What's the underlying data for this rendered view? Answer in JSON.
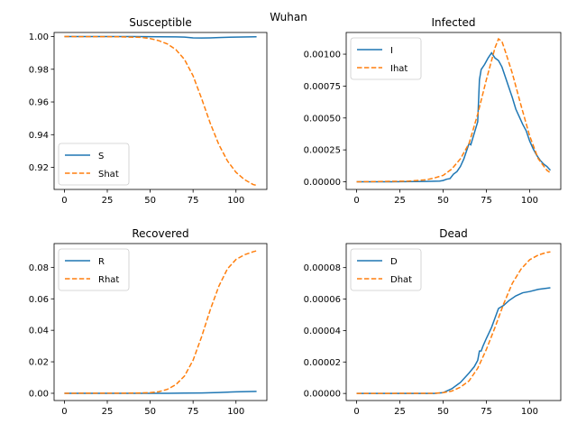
{
  "figure": {
    "suptitle": "Wuhan"
  },
  "chart_data": [
    {
      "type": "line",
      "title": "Susceptible",
      "xlim": [
        -6,
        118
      ],
      "ylim": [
        0.9065,
        1.0025
      ],
      "xticks": [
        0,
        25,
        50,
        75,
        100
      ],
      "xtick_labels": [
        "0",
        "25",
        "50",
        "75",
        "100"
      ],
      "yticks": [
        0.92,
        0.94,
        0.96,
        0.98,
        1.0
      ],
      "ytick_labels": [
        "0.92",
        "0.94",
        "0.96",
        "0.98",
        "1.00"
      ],
      "legend_loc": "lower-left",
      "series": [
        {
          "name": "S",
          "color": "#1f77b4",
          "dash": "solid",
          "points": [
            [
              0,
              1.0
            ],
            [
              20,
              1.0
            ],
            [
              40,
              1.0
            ],
            [
              55,
              0.9999
            ],
            [
              65,
              0.9998
            ],
            [
              70,
              0.9997
            ],
            [
              75,
              0.9992
            ],
            [
              80,
              0.9991
            ],
            [
              85,
              0.9992
            ],
            [
              90,
              0.9994
            ],
            [
              100,
              0.9997
            ],
            [
              112,
              0.9999
            ]
          ]
        },
        {
          "name": "Shat",
          "color": "#ff7f0e",
          "dash": "dashed",
          "points": [
            [
              0,
              1.0
            ],
            [
              30,
              0.9999
            ],
            [
              45,
              0.9995
            ],
            [
              50,
              0.9988
            ],
            [
              55,
              0.9975
            ],
            [
              60,
              0.9955
            ],
            [
              65,
              0.992
            ],
            [
              70,
              0.986
            ],
            [
              75,
              0.976
            ],
            [
              80,
              0.962
            ],
            [
              85,
              0.947
            ],
            [
              90,
              0.934
            ],
            [
              95,
              0.924
            ],
            [
              100,
              0.917
            ],
            [
              105,
              0.9125
            ],
            [
              110,
              0.9095
            ],
            [
              112,
              0.909
            ]
          ]
        }
      ]
    },
    {
      "type": "line",
      "title": "Infected",
      "xlim": [
        -6,
        118
      ],
      "ylim": [
        -6e-05,
        0.00117
      ],
      "xticks": [
        0,
        25,
        50,
        75,
        100
      ],
      "xtick_labels": [
        "0",
        "25",
        "50",
        "75",
        "100"
      ],
      "yticks": [
        0.0,
        0.00025,
        0.0005,
        0.00075,
        0.001
      ],
      "ytick_labels": [
        "0.00000",
        "0.00025",
        "0.00050",
        "0.00075",
        "0.00100"
      ],
      "legend_loc": "upper-left",
      "series": [
        {
          "name": "I",
          "color": "#1f77b4",
          "dash": "solid",
          "points": [
            [
              0,
              0.0
            ],
            [
              20,
              0.0
            ],
            [
              40,
              3e-06
            ],
            [
              48,
              5e-06
            ],
            [
              50,
              1e-05
            ],
            [
              52,
              2e-05
            ],
            [
              54,
              2.5e-05
            ],
            [
              56,
              6e-05
            ],
            [
              58,
              8e-05
            ],
            [
              60,
              0.00012
            ],
            [
              62,
              0.00018
            ],
            [
              64,
              0.00026
            ],
            [
              65,
              0.0003
            ],
            [
              66,
              0.00029
            ],
            [
              68,
              0.00038
            ],
            [
              70,
              0.00047
            ],
            [
              71,
              0.0008
            ],
            [
              72,
              0.00088
            ],
            [
              74,
              0.00092
            ],
            [
              76,
              0.00097
            ],
            [
              78,
              0.00101
            ],
            [
              80,
              0.00097
            ],
            [
              82,
              0.00095
            ],
            [
              84,
              0.0009
            ],
            [
              86,
              0.00082
            ],
            [
              88,
              0.00074
            ],
            [
              90,
              0.00066
            ],
            [
              92,
              0.00057
            ],
            [
              94,
              0.00051
            ],
            [
              96,
              0.00045
            ],
            [
              98,
              0.0004
            ],
            [
              100,
              0.00032
            ],
            [
              102,
              0.00026
            ],
            [
              104,
              0.00021
            ],
            [
              106,
              0.00017
            ],
            [
              108,
              0.00014
            ],
            [
              110,
              0.00012
            ],
            [
              112,
              9e-05
            ]
          ]
        },
        {
          "name": "Ihat",
          "color": "#ff7f0e",
          "dash": "dashed",
          "points": [
            [
              0,
              0.0
            ],
            [
              30,
              5e-06
            ],
            [
              40,
              1.5e-05
            ],
            [
              45,
              3e-05
            ],
            [
              50,
              5e-05
            ],
            [
              55,
              0.0001
            ],
            [
              60,
              0.00018
            ],
            [
              65,
              0.0003
            ],
            [
              70,
              0.00053
            ],
            [
              75,
              0.0008
            ],
            [
              80,
              0.00105
            ],
            [
              82,
              0.00112
            ],
            [
              84,
              0.0011
            ],
            [
              86,
              0.00102
            ],
            [
              90,
              0.00085
            ],
            [
              95,
              0.0006
            ],
            [
              100,
              0.00036
            ],
            [
              105,
              0.00018
            ],
            [
              110,
              9e-05
            ],
            [
              112,
              7e-05
            ]
          ]
        }
      ]
    },
    {
      "type": "line",
      "title": "Recovered",
      "xlim": [
        -6,
        118
      ],
      "ylim": [
        -0.0046,
        0.0951
      ],
      "xticks": [
        0,
        25,
        50,
        75,
        100
      ],
      "xtick_labels": [
        "0",
        "25",
        "50",
        "75",
        "100"
      ],
      "yticks": [
        0.0,
        0.02,
        0.04,
        0.06,
        0.08
      ],
      "ytick_labels": [
        "0.00",
        "0.02",
        "0.04",
        "0.06",
        "0.08"
      ],
      "legend_loc": "upper-left",
      "series": [
        {
          "name": "R",
          "color": "#1f77b4",
          "dash": "solid",
          "points": [
            [
              0,
              0.0
            ],
            [
              60,
              2e-05
            ],
            [
              70,
              0.0001
            ],
            [
              80,
              0.0002
            ],
            [
              90,
              0.0005
            ],
            [
              100,
              0.0009
            ],
            [
              112,
              0.0012
            ]
          ]
        },
        {
          "name": "Rhat",
          "color": "#ff7f0e",
          "dash": "dashed",
          "points": [
            [
              0,
              0.0
            ],
            [
              40,
              0.0001
            ],
            [
              50,
              0.0004
            ],
            [
              55,
              0.001
            ],
            [
              60,
              0.0025
            ],
            [
              65,
              0.0055
            ],
            [
              70,
              0.011
            ],
            [
              75,
              0.021
            ],
            [
              80,
              0.036
            ],
            [
              85,
              0.053
            ],
            [
              90,
              0.068
            ],
            [
              95,
              0.079
            ],
            [
              100,
              0.085
            ],
            [
              105,
              0.088
            ],
            [
              110,
              0.0899
            ],
            [
              112,
              0.0905
            ]
          ]
        }
      ]
    },
    {
      "type": "line",
      "title": "Dead",
      "xlim": [
        -6,
        118
      ],
      "ylim": [
        -4.5e-06,
        9.53e-05
      ],
      "xticks": [
        0,
        25,
        50,
        75,
        100
      ],
      "xtick_labels": [
        "0",
        "25",
        "50",
        "75",
        "100"
      ],
      "yticks": [
        0.0,
        2e-05,
        4e-05,
        6e-05,
        8e-05
      ],
      "ytick_labels": [
        "0.00000",
        "0.00002",
        "0.00004",
        "0.00006",
        "0.00008"
      ],
      "legend_loc": "upper-left",
      "series": [
        {
          "name": "D",
          "color": "#1f77b4",
          "dash": "solid",
          "points": [
            [
              0,
              0.0
            ],
            [
              45,
              0.0
            ],
            [
              50,
              5e-07
            ],
            [
              55,
              3e-06
            ],
            [
              60,
              7e-06
            ],
            [
              65,
              1.3e-05
            ],
            [
              68,
              1.7e-05
            ],
            [
              70,
              2.1e-05
            ],
            [
              71,
              2.7e-05
            ],
            [
              72,
              2.7e-05
            ],
            [
              73,
              3e-05
            ],
            [
              75,
              3.5e-05
            ],
            [
              78,
              4.2e-05
            ],
            [
              80,
              4.8e-05
            ],
            [
              82,
              5.4e-05
            ],
            [
              85,
              5.6e-05
            ],
            [
              88,
              5.9e-05
            ],
            [
              92,
              6.2e-05
            ],
            [
              96,
              6.4e-05
            ],
            [
              100,
              6.48e-05
            ],
            [
              105,
              6.62e-05
            ],
            [
              112,
              6.72e-05
            ]
          ]
        },
        {
          "name": "Dhat",
          "color": "#ff7f0e",
          "dash": "dashed",
          "points": [
            [
              0,
              0.0
            ],
            [
              45,
              1e-07
            ],
            [
              50,
              5e-07
            ],
            [
              55,
              1.5e-06
            ],
            [
              60,
              4e-06
            ],
            [
              65,
              8e-06
            ],
            [
              70,
              1.6e-05
            ],
            [
              75,
              2.8e-05
            ],
            [
              80,
              4.2e-05
            ],
            [
              85,
              5.7e-05
            ],
            [
              90,
              7e-05
            ],
            [
              95,
              7.9e-05
            ],
            [
              100,
              8.5e-05
            ],
            [
              105,
              8.8e-05
            ],
            [
              110,
              8.97e-05
            ],
            [
              112,
              9e-05
            ]
          ]
        }
      ]
    }
  ]
}
